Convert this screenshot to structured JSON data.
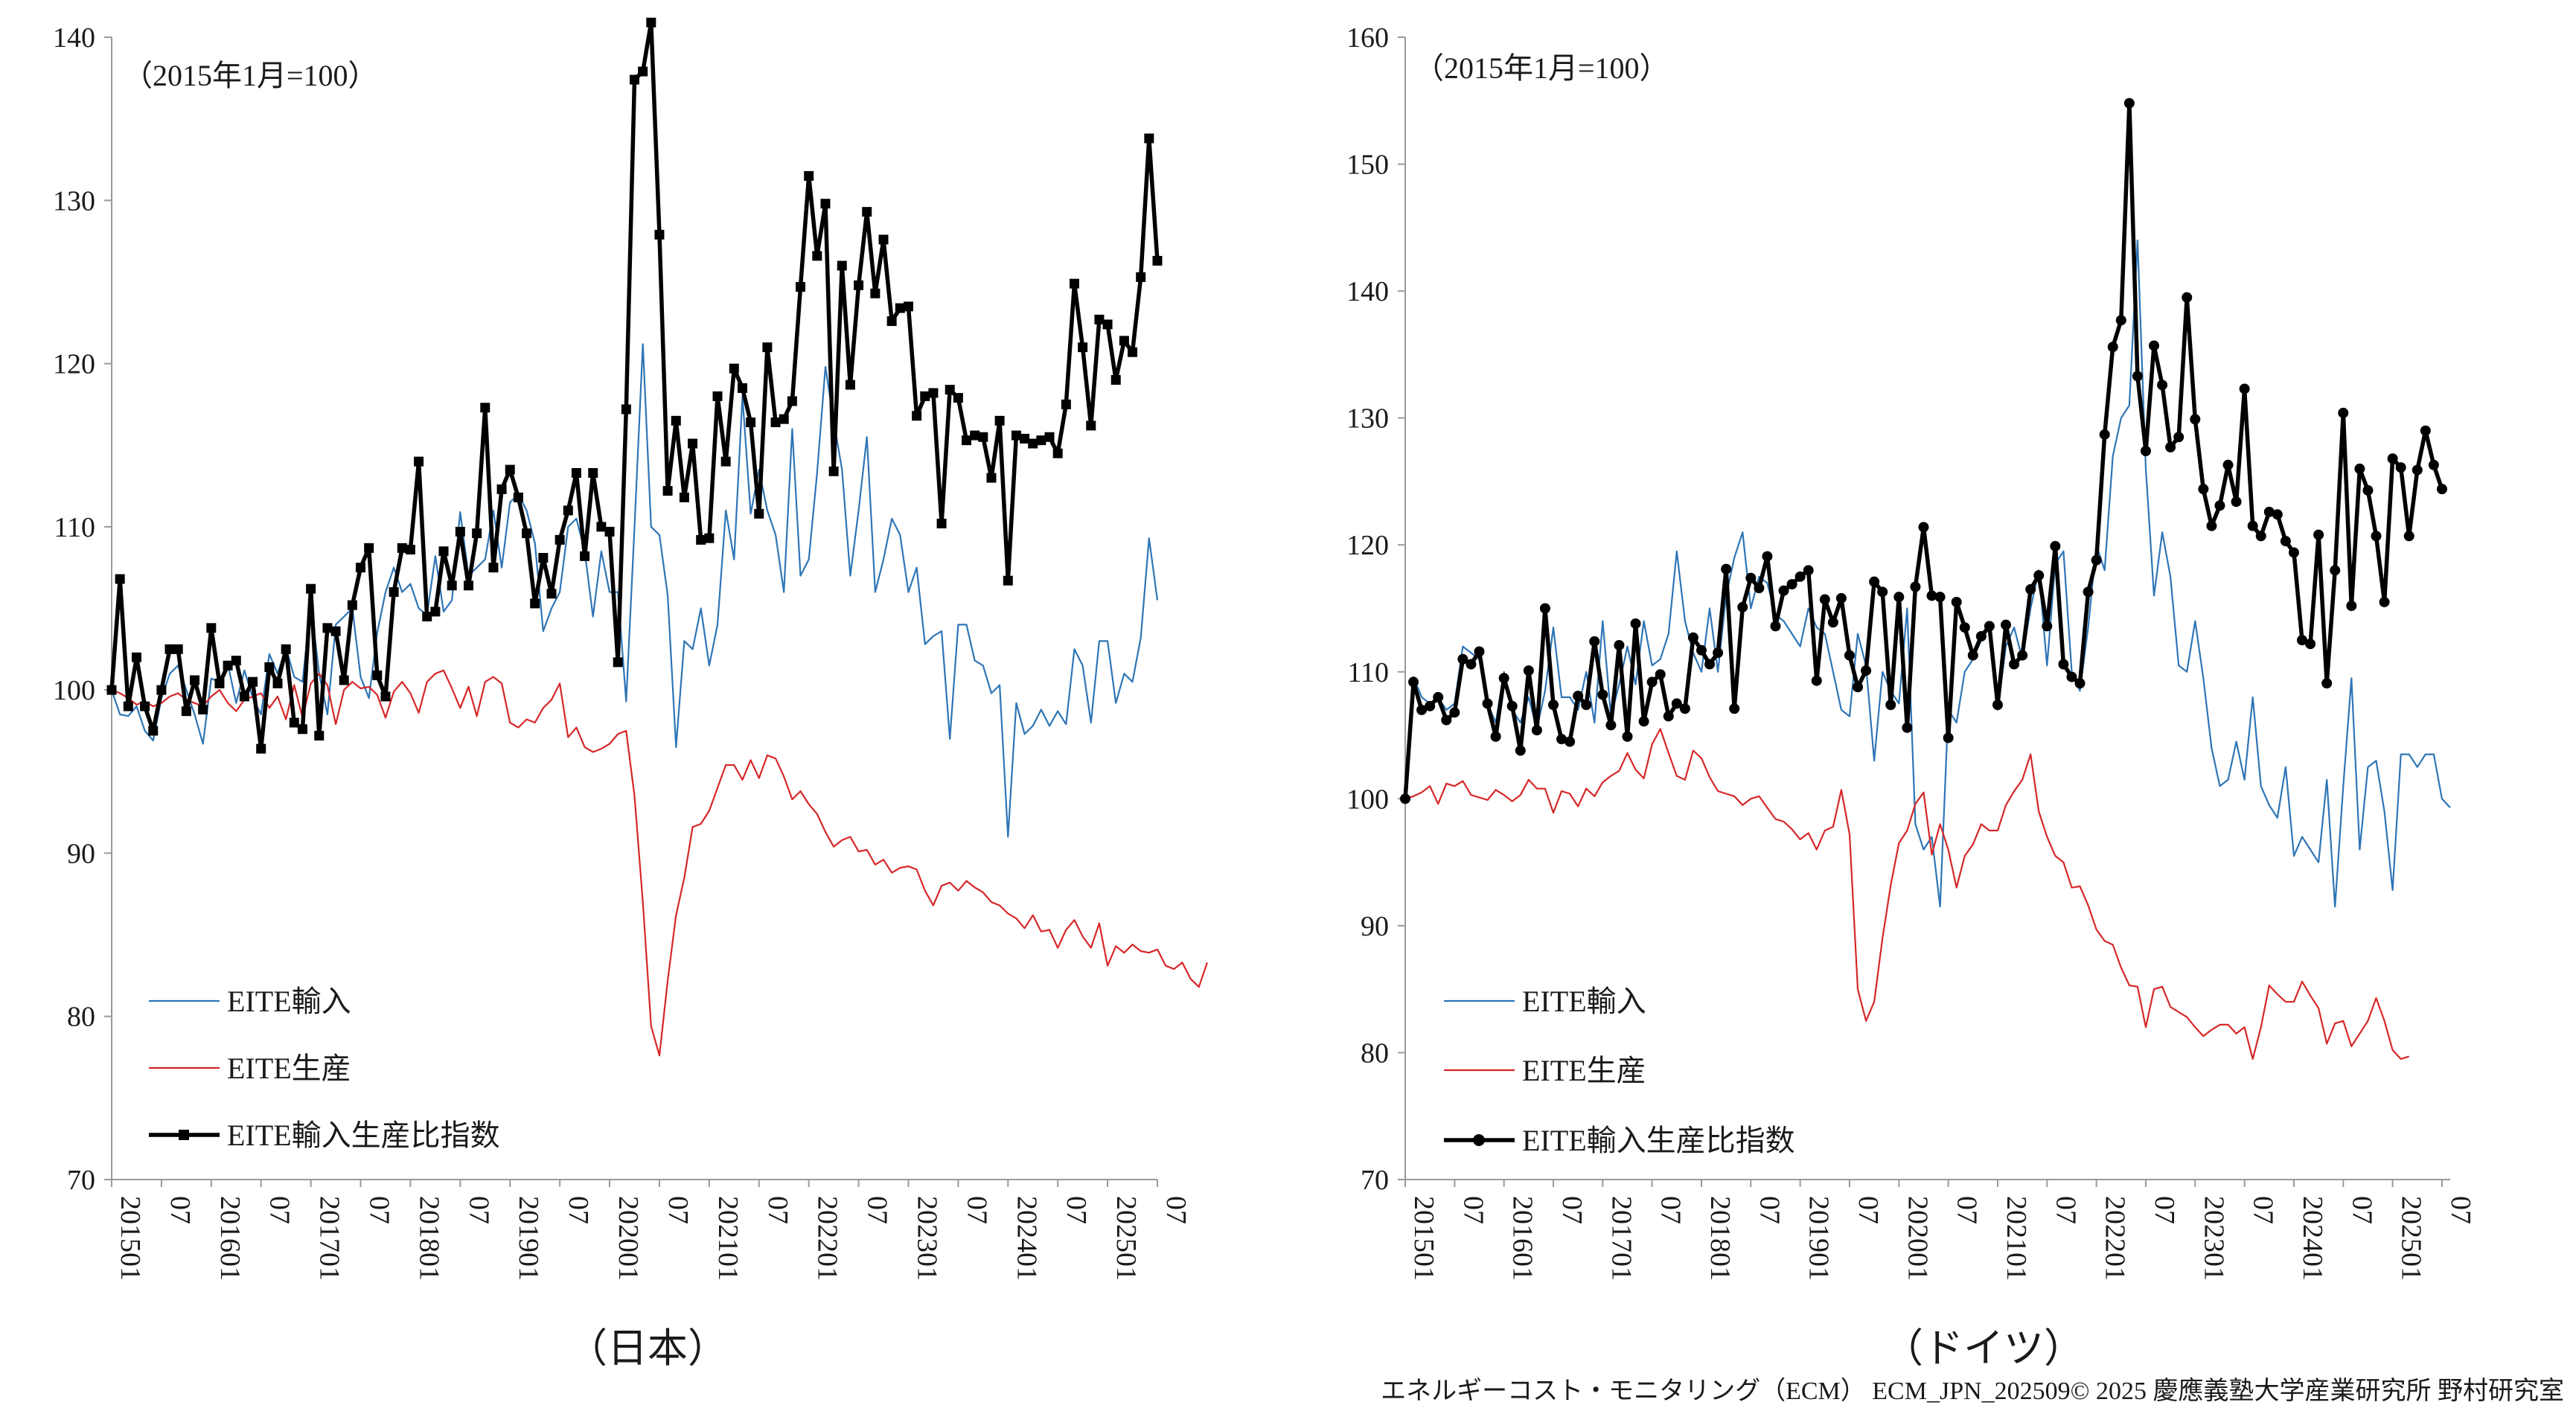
{
  "credit": "エネルギーコスト・モニタリング（ECM） ECM_JPN_202509© 2025 慶應義塾大学産業研究所 野村研究室",
  "colors": {
    "import": "#2e75b6",
    "production": "#d62728",
    "ratio": "#000000",
    "axis": "#9a9a9a"
  },
  "chart_data": [
    {
      "type": "line",
      "caption": "（日本）",
      "unit_note": "（2015年1月=100）",
      "ylim": [
        70,
        140
      ],
      "yticks": [
        70,
        80,
        90,
        100,
        110,
        120,
        130,
        140
      ],
      "x_tick_labels": [
        "201501",
        "07",
        "201601",
        "07",
        "201701",
        "07",
        "201801",
        "07",
        "201901",
        "07",
        "202001",
        "07",
        "202101",
        "07",
        "202201",
        "07",
        "202301",
        "07",
        "202401",
        "07",
        "202501",
        "07"
      ],
      "x_start": "2015-01",
      "x_end": "2025-07",
      "legend_placement": "bottom-left",
      "series": [
        {
          "name": "EITE輸入",
          "color": "#2e75b6",
          "marker": "none",
          "values": [
            100,
            98.5,
            98.4,
            99,
            97.5,
            96.9,
            99.5,
            101,
            101.5,
            100,
            98.5,
            96.7,
            100.7,
            100.5,
            101.6,
            99.2,
            101.2,
            99.5,
            98.5,
            102.2,
            101,
            102.6,
            100.8,
            100.5,
            105.3,
            101,
            98.5,
            104,
            104.5,
            105,
            100.8,
            99.5,
            103.5,
            106,
            107.5,
            106,
            106.5,
            105,
            104.6,
            108.2,
            104.8,
            105.5,
            110.9,
            107,
            107.5,
            108,
            111,
            107.5,
            111.5,
            112,
            111,
            109,
            103.6,
            105,
            106,
            110,
            110.5,
            108.5,
            104.5,
            108.5,
            106,
            106,
            99.3,
            110,
            121.2,
            110,
            109.5,
            105.8,
            96.5,
            103,
            102.5,
            105,
            101.5,
            104,
            111,
            108,
            118,
            110.8,
            113.5,
            111,
            109.5,
            106,
            116,
            107,
            108,
            113.3,
            119.8,
            116.5,
            113.5,
            107,
            111,
            115.5,
            106,
            108,
            110.5,
            109.5,
            106,
            107.5,
            102.8,
            103.3,
            103.6,
            97,
            104,
            104,
            101.8,
            101.5,
            99.8,
            100.3,
            91,
            99.2,
            97.3,
            97.8,
            98.8,
            97.8,
            98.7,
            97.9,
            102.5,
            101.5,
            98,
            103,
            103,
            99.2,
            101,
            100.5,
            103.2,
            109.3,
            105.5
          ]
        },
        {
          "name": "EITE生産",
          "color": "#d62728",
          "marker": "none",
          "values": [
            100,
            99.8,
            99.5,
            99.1,
            99.3,
            99,
            99.2,
            99.6,
            99.8,
            99.4,
            99.2,
            99,
            99.6,
            100,
            99.2,
            98.7,
            99.4,
            99.6,
            99.8,
            98.9,
            99.6,
            98.2,
            100.3,
            98.3,
            100.4,
            101,
            100.3,
            97.9,
            100,
            100.5,
            100.1,
            100.2,
            99.7,
            98.3,
            99.9,
            100.5,
            99.8,
            98.6,
            100.5,
            101,
            101.2,
            100.1,
            98.9,
            100.2,
            98.4,
            100.5,
            100.8,
            100.4,
            98,
            97.7,
            98.2,
            98,
            98.9,
            99.4,
            100.4,
            97.1,
            97.7,
            96.5,
            96.2,
            96.4,
            96.7,
            97.3,
            97.5,
            93.5,
            87,
            79.4,
            77.6,
            82.2,
            86.2,
            88.5,
            91.6,
            91.8,
            92.6,
            94,
            95.4,
            95.4,
            94.5,
            95.7,
            94.6,
            96,
            95.8,
            94.7,
            93.3,
            93.8,
            93,
            92.4,
            91.3,
            90.4,
            90.8,
            91,
            90.1,
            90.2,
            89.3,
            89.6,
            88.8,
            89.1,
            89.2,
            89,
            87.7,
            86.8,
            88,
            88.2,
            87.7,
            88.3,
            87.9,
            87.6,
            87,
            86.8,
            86.3,
            86,
            85.4,
            86.2,
            85.2,
            85.3,
            84.2,
            85.3,
            85.9,
            84.9,
            84.2,
            85.7,
            83.1,
            84.3,
            83.9,
            84.4,
            84,
            83.9,
            84.1,
            83.1,
            82.9,
            83.3,
            82.3,
            81.8,
            83.3
          ]
        },
        {
          "name": "EITE輸入生産比指数",
          "color": "#000000",
          "marker": "square",
          "values": [
            100,
            106.8,
            99,
            102,
            99,
            97.5,
            100,
            102.5,
            102.5,
            98.7,
            100.6,
            98.8,
            103.8,
            100.4,
            101.5,
            101.8,
            99.6,
            100.5,
            96.4,
            101.4,
            100.4,
            102.5,
            98,
            97.6,
            106.2,
            97.2,
            103.8,
            103.6,
            100.6,
            105.2,
            107.5,
            108.7,
            100.9,
            99.6,
            106,
            108.7,
            108.6,
            114,
            104.5,
            104.8,
            108.5,
            106.4,
            109.7,
            106.4,
            109.6,
            117.3,
            107.5,
            112.3,
            113.5,
            111.8,
            109.6,
            105.3,
            108.1,
            105.9,
            109.2,
            111,
            113.3,
            108.2,
            113.3,
            110,
            109.7,
            101.7,
            117.2,
            137.4,
            137.9,
            140.9,
            127.9,
            112.2,
            116.5,
            111.8,
            115.1,
            109.2,
            109.3,
            118,
            114,
            119.7,
            118.5,
            116.4,
            110.8,
            121,
            116.4,
            116.6,
            117.7,
            124.7,
            131.5,
            126.6,
            129.8,
            113.4,
            126,
            118.7,
            124.8,
            129.3,
            124.3,
            127.6,
            122.6,
            123.4,
            123.5,
            116.8,
            118,
            118.2,
            110.2,
            118.4,
            117.9,
            115.3,
            115.6,
            115.5,
            113,
            116.5,
            106.7,
            115.6,
            115.4,
            115.1,
            115.3,
            115.5,
            114.5,
            117.5,
            124.9,
            121,
            116.2,
            122.7,
            122.4,
            119,
            121.4,
            120.7,
            125.3,
            133.8,
            126.3
          ]
        }
      ]
    },
    {
      "type": "line",
      "caption": "（ドイツ）",
      "unit_note": "（2015年1月=100）",
      "ylim": [
        70,
        160
      ],
      "yticks": [
        70,
        80,
        90,
        100,
        110,
        120,
        130,
        140,
        150,
        160
      ],
      "x_tick_labels": [
        "201501",
        "07",
        "201601",
        "07",
        "201701",
        "07",
        "201801",
        "07",
        "201901",
        "07",
        "202001",
        "07",
        "202101",
        "07",
        "202201",
        "07",
        "202301",
        "07",
        "202401",
        "07",
        "202501",
        "07"
      ],
      "x_start": "2015-01",
      "x_end": "2025-07",
      "legend_placement": "bottom-left",
      "series": [
        {
          "name": "EITE輸入",
          "color": "#2e75b6",
          "marker": "none",
          "values": [
            100,
            109.6,
            108,
            107.5,
            108,
            107,
            107.5,
            112,
            111.5,
            111,
            107.5,
            106,
            110,
            107,
            106,
            108,
            105.5,
            108.5,
            113.5,
            108,
            108,
            107,
            110,
            106,
            114,
            106.5,
            109,
            112,
            109,
            114,
            110.5,
            111,
            113,
            119.5,
            114,
            111.5,
            110,
            115,
            110,
            116,
            119,
            121,
            115,
            117.5,
            117,
            114.5,
            114,
            113,
            112,
            115,
            113.5,
            113,
            110,
            107,
            106.5,
            113,
            110.5,
            103,
            110,
            108.5,
            107.5,
            115,
            98,
            96,
            97,
            91.5,
            107,
            106,
            110,
            111,
            112.5,
            113.5,
            107,
            112,
            113.5,
            111,
            115,
            118,
            110.5,
            118.5,
            119.5,
            110,
            108.5,
            113.5,
            120,
            118,
            127,
            130,
            131,
            144,
            126,
            116,
            121,
            117.5,
            110.5,
            110,
            114,
            109.5,
            104,
            101,
            101.5,
            104.5,
            101.5,
            108,
            101,
            99.5,
            98.5,
            102.5,
            95.5,
            97,
            96,
            95,
            101.5,
            91.5,
            101,
            109.5,
            96,
            102.5,
            103,
            99,
            92.8,
            103.5,
            103.5,
            102.5,
            103.5,
            103.5,
            100,
            99.3
          ]
        },
        {
          "name": "EITE生産",
          "color": "#d62728",
          "marker": "none",
          "values": [
            100,
            100.2,
            100.5,
            101,
            99.6,
            101.2,
            101,
            101.4,
            100.3,
            100.1,
            99.9,
            100.7,
            100.3,
            99.8,
            100.3,
            101.5,
            100.8,
            100.8,
            98.9,
            100.6,
            100.4,
            99.4,
            100.8,
            100.2,
            101.3,
            101.8,
            102.2,
            103.6,
            102.3,
            101.6,
            104.3,
            105.5,
            103.6,
            101.8,
            101.5,
            103.8,
            103.2,
            101.7,
            100.6,
            100.4,
            100.2,
            99.5,
            100,
            100.2,
            99.3,
            98.4,
            98.2,
            97.6,
            96.8,
            97.3,
            96,
            97.5,
            97.8,
            100.7,
            97.2,
            85,
            82.5,
            84,
            89,
            93.2,
            96.5,
            97.5,
            99.6,
            100.5,
            95.6,
            98,
            96,
            93,
            95.5,
            96.4,
            98,
            97.5,
            97.5,
            99.5,
            100.6,
            101.5,
            103.5,
            99,
            97,
            95.5,
            95,
            93,
            93.1,
            91.6,
            89.7,
            88.8,
            88.5,
            86.7,
            85.3,
            85.2,
            82,
            85,
            85.2,
            83.6,
            83.2,
            82.8,
            82,
            81.3,
            81.8,
            82.2,
            82.2,
            81.5,
            82,
            79.5,
            82,
            85.3,
            84.6,
            84,
            84,
            85.6,
            84.5,
            83.5,
            80.7,
            82.3,
            82.5,
            80.5,
            81.5,
            82.5,
            84.3,
            82.5,
            80.2,
            79.5,
            79.7
          ]
        },
        {
          "name": "EITE輸入生産比指数",
          "color": "#000000",
          "marker": "circle",
          "values": [
            100,
            109.2,
            107,
            107.3,
            108,
            106.2,
            106.8,
            111,
            110.6,
            111.6,
            107.5,
            104.9,
            109.5,
            107.3,
            103.8,
            110.1,
            105.4,
            115,
            107.4,
            104.7,
            104.5,
            108.1,
            107.4,
            112.4,
            108.2,
            105.8,
            112.1,
            104.9,
            113.8,
            106.1,
            109.2,
            109.8,
            106.5,
            107.5,
            107.1,
            112.7,
            111.7,
            110.6,
            111.5,
            118.1,
            107.1,
            115.1,
            117.4,
            116.6,
            119.1,
            113.6,
            116.4,
            116.9,
            117.5,
            118,
            109.3,
            115.7,
            113.9,
            115.8,
            111.3,
            108.8,
            110.1,
            117.1,
            116.3,
            107.4,
            115.9,
            105.6,
            116.7,
            121.4,
            116,
            115.9,
            104.8,
            115.5,
            113.5,
            111.3,
            112.8,
            113.6,
            107.4,
            113.7,
            110.6,
            111.3,
            116.5,
            117.6,
            113.6,
            119.9,
            110.6,
            109.6,
            109.1,
            116.3,
            118.8,
            128.7,
            135.6,
            137.7,
            154.8,
            133.3,
            127.4,
            135.7,
            132.6,
            127.7,
            128.5,
            139.5,
            129.9,
            124.4,
            121.5,
            123.1,
            126.3,
            123.4,
            132.3,
            121.5,
            120.7,
            122.6,
            122.4,
            120.3,
            119.4,
            112.5,
            112.2,
            120.8,
            109.1,
            118,
            130.4,
            115.2,
            126,
            124.3,
            120.7,
            115.5,
            126.8,
            126.1,
            120.7,
            125.9,
            129,
            126.3,
            124.4
          ]
        }
      ]
    }
  ]
}
